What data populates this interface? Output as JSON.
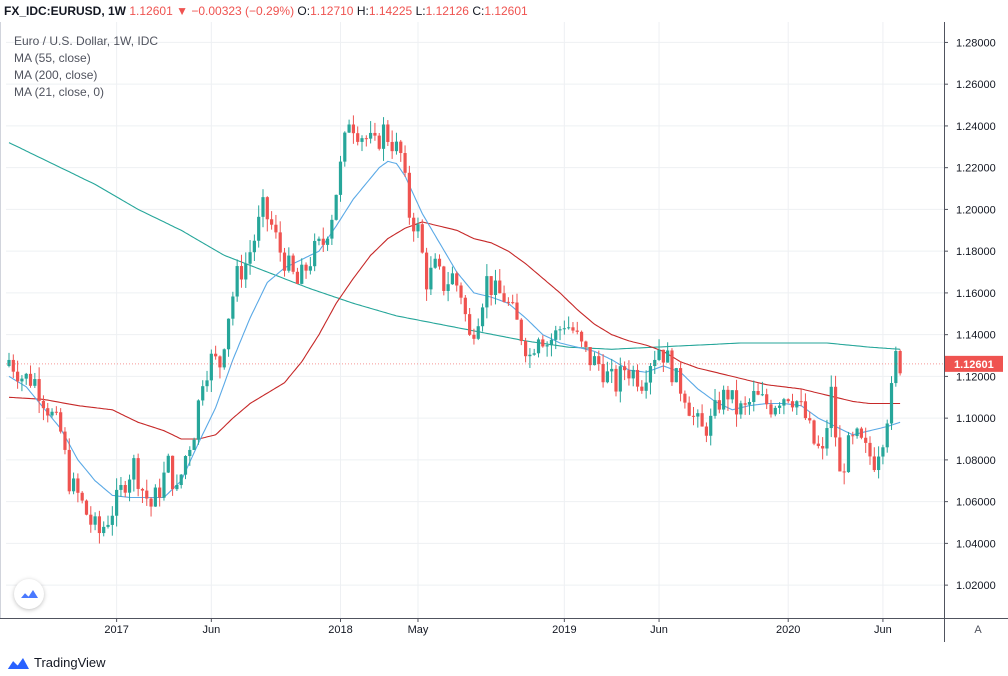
{
  "header": {
    "symbol": "FX_IDC:EURUSD, 1W",
    "price": "1.12601",
    "change_arrow": "▼",
    "change": "−0.00323 (−0.29%)",
    "open_label": "O:",
    "open": "1.12710",
    "high_label": "H:",
    "high": "1.14225",
    "low_label": "L:",
    "low": "1.12126",
    "close_label": "C:",
    "close": "1.12601"
  },
  "legend": {
    "title": "Euro / U.S. Dollar, 1W, IDC",
    "ma55": "MA (55, close)",
    "ma200": "MA (200, close)",
    "ma21": "MA (21, close, 0)"
  },
  "footer": {
    "brand": "TradingView",
    "auto_label": "A"
  },
  "colors": {
    "up": "#26a69a",
    "down": "#ef5350",
    "ma21": "#5aa9e6",
    "ma55": "#c62828",
    "ma200": "#26a69a",
    "grid": "#eef0f3",
    "last_price_bg": "#ef5350",
    "brand": "#2962ff"
  },
  "chart_data": {
    "type": "candlestick",
    "title": "Euro / U.S. Dollar, 1W, IDC",
    "ylim": [
      1.01,
      1.285
    ],
    "y_ticks": [
      "1.28000",
      "1.26000",
      "1.24000",
      "1.22000",
      "1.20000",
      "1.18000",
      "1.16000",
      "1.14000",
      "1.12000",
      "1.10000",
      "1.08000",
      "1.06000",
      "1.04000",
      "1.02000"
    ],
    "x_ticks": [
      {
        "label": "2017",
        "week": 25
      },
      {
        "label": "Jun",
        "week": 47
      },
      {
        "label": "2018",
        "week": 77
      },
      {
        "label": "May",
        "week": 95
      },
      {
        "label": "2019",
        "week": 129
      },
      {
        "label": "Jun",
        "week": 151
      },
      {
        "label": "2020",
        "week": 181
      },
      {
        "label": "Jun",
        "week": 203
      }
    ],
    "last_price": "1.12601",
    "close_anchors": [
      [
        0,
        1.128
      ],
      [
        3,
        1.12
      ],
      [
        6,
        1.118
      ],
      [
        9,
        1.105
      ],
      [
        12,
        1.093
      ],
      [
        14,
        1.07
      ],
      [
        16,
        1.063
      ],
      [
        19,
        1.05
      ],
      [
        21,
        1.045
      ],
      [
        23,
        1.052
      ],
      [
        25,
        1.06
      ],
      [
        27,
        1.07
      ],
      [
        29,
        1.078
      ],
      [
        31,
        1.066
      ],
      [
        33,
        1.058
      ],
      [
        35,
        1.066
      ],
      [
        37,
        1.078
      ],
      [
        39,
        1.064
      ],
      [
        41,
        1.082
      ],
      [
        43,
        1.094
      ],
      [
        45,
        1.12
      ],
      [
        47,
        1.128
      ],
      [
        49,
        1.126
      ],
      [
        51,
        1.15
      ],
      [
        53,
        1.168
      ],
      [
        55,
        1.174
      ],
      [
        57,
        1.186
      ],
      [
        59,
        1.2
      ],
      [
        61,
        1.192
      ],
      [
        63,
        1.18
      ],
      [
        65,
        1.172
      ],
      [
        67,
        1.164
      ],
      [
        69,
        1.172
      ],
      [
        71,
        1.18
      ],
      [
        73,
        1.184
      ],
      [
        75,
        1.198
      ],
      [
        77,
        1.22
      ],
      [
        79,
        1.244
      ],
      [
        81,
        1.238
      ],
      [
        83,
        1.234
      ],
      [
        85,
        1.23
      ],
      [
        87,
        1.238
      ],
      [
        89,
        1.232
      ],
      [
        91,
        1.226
      ],
      [
        93,
        1.198
      ],
      [
        95,
        1.19
      ],
      [
        97,
        1.166
      ],
      [
        99,
        1.172
      ],
      [
        101,
        1.164
      ],
      [
        103,
        1.168
      ],
      [
        105,
        1.16
      ],
      [
        107,
        1.138
      ],
      [
        109,
        1.15
      ],
      [
        111,
        1.166
      ],
      [
        113,
        1.16
      ],
      [
        115,
        1.158
      ],
      [
        117,
        1.15
      ],
      [
        119,
        1.14
      ],
      [
        121,
        1.13
      ],
      [
        123,
        1.142
      ],
      [
        125,
        1.136
      ],
      [
        127,
        1.14
      ],
      [
        129,
        1.146
      ],
      [
        131,
        1.142
      ],
      [
        133,
        1.134
      ],
      [
        135,
        1.128
      ],
      [
        137,
        1.126
      ],
      [
        139,
        1.12
      ],
      [
        141,
        1.116
      ],
      [
        143,
        1.124
      ],
      [
        145,
        1.122
      ],
      [
        147,
        1.118
      ],
      [
        149,
        1.128
      ],
      [
        151,
        1.134
      ],
      [
        153,
        1.128
      ],
      [
        155,
        1.118
      ],
      [
        157,
        1.112
      ],
      [
        159,
        1.1
      ],
      [
        161,
        1.094
      ],
      [
        163,
        1.098
      ],
      [
        165,
        1.108
      ],
      [
        167,
        1.112
      ],
      [
        169,
        1.104
      ],
      [
        171,
        1.104
      ],
      [
        173,
        1.11
      ],
      [
        175,
        1.108
      ],
      [
        177,
        1.106
      ],
      [
        179,
        1.11
      ],
      [
        181,
        1.112
      ],
      [
        183,
        1.108
      ],
      [
        185,
        1.1
      ],
      [
        187,
        1.088
      ],
      [
        189,
        1.082
      ],
      [
        191,
        1.112
      ],
      [
        193,
        1.072
      ],
      [
        195,
        1.086
      ],
      [
        197,
        1.09
      ],
      [
        199,
        1.084
      ],
      [
        201,
        1.08
      ],
      [
        203,
        1.092
      ],
      [
        205,
        1.112
      ],
      [
        206,
        1.129
      ],
      [
        207,
        1.126
      ]
    ],
    "ma21": [
      [
        0,
        1.12
      ],
      [
        4,
        1.115
      ],
      [
        8,
        1.105
      ],
      [
        12,
        1.095
      ],
      [
        16,
        1.08
      ],
      [
        20,
        1.07
      ],
      [
        24,
        1.063
      ],
      [
        28,
        1.062
      ],
      [
        32,
        1.062
      ],
      [
        36,
        1.062
      ],
      [
        40,
        1.07
      ],
      [
        44,
        1.088
      ],
      [
        48,
        1.105
      ],
      [
        52,
        1.128
      ],
      [
        56,
        1.148
      ],
      [
        60,
        1.165
      ],
      [
        64,
        1.172
      ],
      [
        68,
        1.176
      ],
      [
        72,
        1.18
      ],
      [
        76,
        1.192
      ],
      [
        80,
        1.205
      ],
      [
        84,
        1.215
      ],
      [
        86,
        1.22
      ],
      [
        88,
        1.223
      ],
      [
        90,
        1.222
      ],
      [
        92,
        1.216
      ],
      [
        96,
        1.198
      ],
      [
        100,
        1.184
      ],
      [
        104,
        1.17
      ],
      [
        108,
        1.16
      ],
      [
        112,
        1.158
      ],
      [
        116,
        1.155
      ],
      [
        120,
        1.148
      ],
      [
        124,
        1.14
      ],
      [
        128,
        1.136
      ],
      [
        132,
        1.134
      ],
      [
        136,
        1.132
      ],
      [
        140,
        1.128
      ],
      [
        144,
        1.123
      ],
      [
        148,
        1.122
      ],
      [
        152,
        1.125
      ],
      [
        156,
        1.122
      ],
      [
        160,
        1.114
      ],
      [
        164,
        1.108
      ],
      [
        168,
        1.104
      ],
      [
        172,
        1.106
      ],
      [
        176,
        1.107
      ],
      [
        180,
        1.107
      ],
      [
        184,
        1.106
      ],
      [
        188,
        1.1
      ],
      [
        192,
        1.096
      ],
      [
        196,
        1.092
      ],
      [
        200,
        1.094
      ],
      [
        204,
        1.096
      ],
      [
        207,
        1.098
      ]
    ],
    "ma55": [
      [
        0,
        1.11
      ],
      [
        8,
        1.109
      ],
      [
        16,
        1.106
      ],
      [
        24,
        1.104
      ],
      [
        30,
        1.098
      ],
      [
        36,
        1.094
      ],
      [
        40,
        1.09
      ],
      [
        44,
        1.09
      ],
      [
        48,
        1.092
      ],
      [
        52,
        1.1
      ],
      [
        56,
        1.107
      ],
      [
        60,
        1.112
      ],
      [
        64,
        1.117
      ],
      [
        68,
        1.127
      ],
      [
        72,
        1.14
      ],
      [
        76,
        1.155
      ],
      [
        80,
        1.167
      ],
      [
        84,
        1.178
      ],
      [
        88,
        1.186
      ],
      [
        92,
        1.191
      ],
      [
        96,
        1.194
      ],
      [
        100,
        1.192
      ],
      [
        104,
        1.19
      ],
      [
        108,
        1.186
      ],
      [
        112,
        1.184
      ],
      [
        116,
        1.18
      ],
      [
        120,
        1.174
      ],
      [
        124,
        1.167
      ],
      [
        128,
        1.16
      ],
      [
        132,
        1.152
      ],
      [
        136,
        1.145
      ],
      [
        140,
        1.14
      ],
      [
        144,
        1.137
      ],
      [
        148,
        1.135
      ],
      [
        152,
        1.132
      ],
      [
        156,
        1.127
      ],
      [
        160,
        1.124
      ],
      [
        164,
        1.122
      ],
      [
        168,
        1.12
      ],
      [
        172,
        1.118
      ],
      [
        176,
        1.116
      ],
      [
        180,
        1.115
      ],
      [
        184,
        1.114
      ],
      [
        188,
        1.112
      ],
      [
        192,
        1.11
      ],
      [
        196,
        1.108
      ],
      [
        200,
        1.107
      ],
      [
        204,
        1.107
      ],
      [
        207,
        1.107
      ]
    ],
    "ma200": [
      [
        0,
        1.232
      ],
      [
        10,
        1.222
      ],
      [
        20,
        1.212
      ],
      [
        30,
        1.2
      ],
      [
        40,
        1.19
      ],
      [
        50,
        1.178
      ],
      [
        60,
        1.17
      ],
      [
        70,
        1.162
      ],
      [
        80,
        1.155
      ],
      [
        90,
        1.149
      ],
      [
        100,
        1.145
      ],
      [
        110,
        1.141
      ],
      [
        120,
        1.137
      ],
      [
        130,
        1.134
      ],
      [
        140,
        1.133
      ],
      [
        150,
        1.134
      ],
      [
        160,
        1.135
      ],
      [
        170,
        1.136
      ],
      [
        180,
        1.136
      ],
      [
        190,
        1.136
      ],
      [
        200,
        1.134
      ],
      [
        207,
        1.133
      ]
    ]
  }
}
